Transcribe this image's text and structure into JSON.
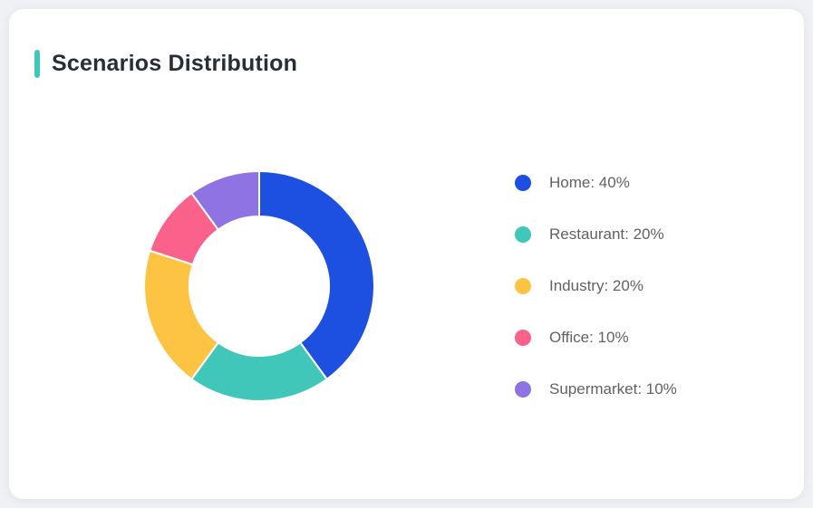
{
  "card": {
    "title": "Scenarios Distribution",
    "accent_color": "#3EC8BB"
  },
  "chart_data": {
    "type": "pie",
    "subtype": "donut",
    "title": "Scenarios Distribution",
    "categories": [
      "Home",
      "Restaurant",
      "Industry",
      "Office",
      "Supermarket"
    ],
    "values": [
      40,
      20,
      20,
      10,
      10
    ],
    "unit": "%",
    "colors": [
      "#1D50E0",
      "#41C7BA",
      "#FDC444",
      "#FA628B",
      "#8F73E2"
    ],
    "start_angle_deg": 0,
    "direction": "clockwise",
    "inner_radius_ratio": 0.61,
    "slice_border_color": "#FFFFFF",
    "slice_border_width": 2,
    "legend_position": "right",
    "legend_labels": [
      "Home: 40%",
      "Restaurant: 20%",
      "Industry: 20%",
      "Office: 10%",
      "Supermarket: 10%"
    ]
  }
}
